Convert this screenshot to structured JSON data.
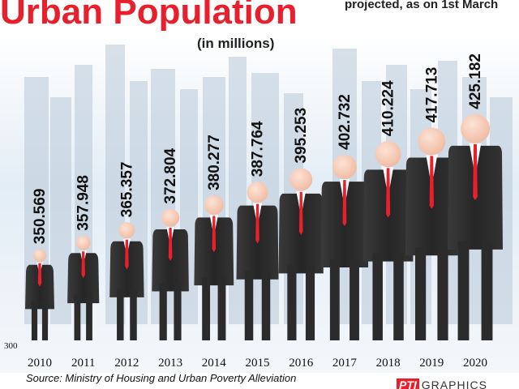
{
  "header": {
    "title": "Urban Population",
    "units": "(in millions)",
    "note": "projected, as on 1st March"
  },
  "footer": {
    "source": "Source: Ministry of Housing and Urban Poverty Alleviation",
    "credit_brand": "PTI",
    "credit_suffix": "GRAPHICS"
  },
  "colors": {
    "title": "#e8202e",
    "suit": "#2b2b2b",
    "tie": "#e8202e",
    "skin": "#f6cbb6",
    "sky": "#dbe8f3",
    "buildings": "#b9c9d8"
  },
  "chart_data": {
    "type": "bar",
    "title": "Urban Population",
    "ylabel": "(in millions)",
    "categories": [
      "2010",
      "2011",
      "2012",
      "2013",
      "2014",
      "2015",
      "2016",
      "2017",
      "2018",
      "2019",
      "2020"
    ],
    "values": [
      350.569,
      357.948,
      365.357,
      372.804,
      380.277,
      387.764,
      395.253,
      402.732,
      410.224,
      417.713,
      425.182
    ],
    "value_labels": [
      "350.569",
      "357.948",
      "365.357",
      "372.804",
      "380.277",
      "387.764",
      "395.253",
      "402.732",
      "410.224",
      "417.713",
      "425.182"
    ],
    "baseline_label": "300",
    "ylim": [
      300,
      430
    ],
    "grid": false,
    "legend": "none"
  }
}
